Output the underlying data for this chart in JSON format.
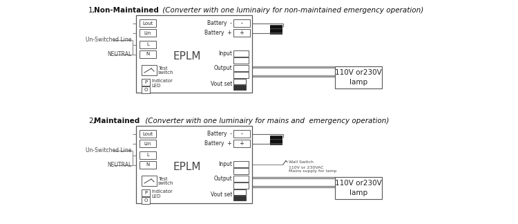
{
  "bg_color": "#ffffff",
  "title1_num": "1,",
  "title1_bold": "Non-Maintained",
  "title1_italic": " (Converter with one luminairy for non-maintained emergency operation)",
  "title2_num": "2,",
  "title2_bold": "Maintained",
  "title2_italic": " (Converter with one luminairy for mains and  emergency operation)",
  "eplm_label": "EPLM",
  "lamp_label": "110V or230V\nlamp",
  "wall_switch_lines": [
    "Wall Switch",
    "110V or 230VAC",
    "Mains supply for lamp"
  ],
  "line_color": "#888888",
  "dark": "#333333",
  "mid": "#666666",
  "light_gray": "#aaaaaa"
}
